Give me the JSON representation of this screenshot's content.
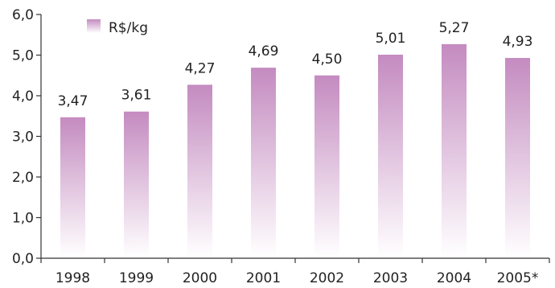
{
  "chart_data": {
    "type": "bar",
    "categories": [
      "1998",
      "1999",
      "2000",
      "2001",
      "2002",
      "2003",
      "2004",
      "2005*"
    ],
    "series": [
      {
        "name": "R$/kg",
        "values": [
          3.47,
          3.61,
          4.27,
          4.69,
          4.5,
          5.01,
          5.27,
          4.93
        ],
        "labels": [
          "3,47",
          "3,61",
          "4,27",
          "4,69",
          "4,50",
          "5,01",
          "5,27",
          "4,93"
        ]
      }
    ],
    "ylim": [
      0,
      6
    ],
    "yticks": [
      0,
      1,
      2,
      3,
      4,
      5,
      6
    ],
    "ytick_labels": [
      "0,0",
      "1,0",
      "2,0",
      "3,0",
      "4,0",
      "5,0",
      "6,0"
    ],
    "title": "",
    "xlabel": "",
    "ylabel": "",
    "grid": false,
    "legend_position": "top-left",
    "colors": {
      "bar_top": "#c48bc0",
      "bar_bottom": "#ffffff",
      "axis": "#333333"
    }
  }
}
